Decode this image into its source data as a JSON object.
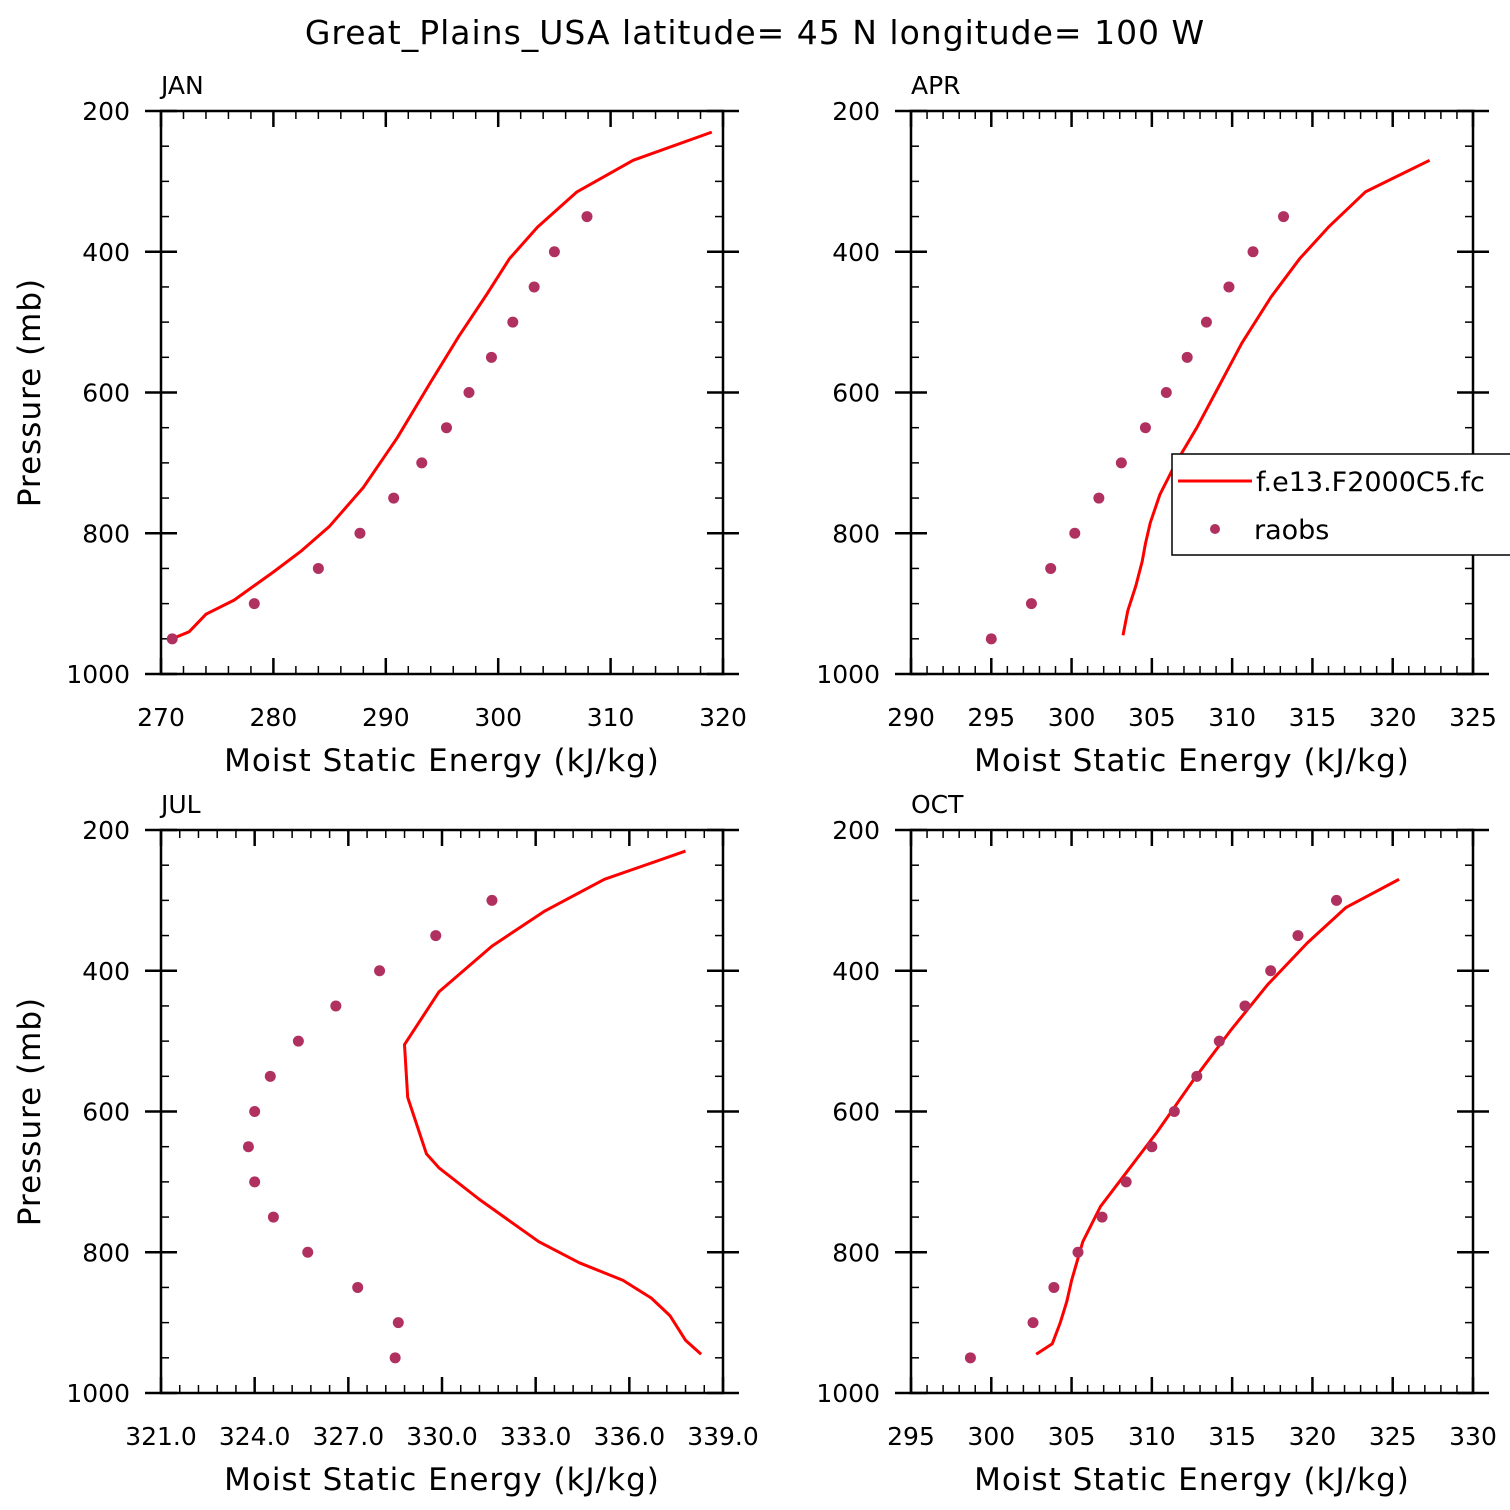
{
  "title": "Great_Plains_USA  latitude= 45 N longitude= 100 W",
  "colors": {
    "model": "#ff0000",
    "obs": "#b03060"
  },
  "legend": {
    "model_label": "f.e13.F2000C5.fc",
    "obs_label": "raobs",
    "placement": "right, inside APR panel"
  },
  "chart_data": [
    {
      "type": "line",
      "title": "JAN",
      "xlabel": "Moist Static Energy (kJ/kg)",
      "ylabel": "Pressure (mb)",
      "xlim": [
        270,
        320
      ],
      "ylim": [
        1000,
        200
      ],
      "xticks": [
        270,
        280,
        290,
        300,
        310,
        320
      ],
      "xtick_labels": [
        "270",
        "280",
        "290",
        "300",
        "310",
        "320"
      ],
      "yticks": [
        200,
        400,
        600,
        800,
        1000
      ],
      "ytick_labels": [
        "200",
        "400",
        "600",
        "800",
        "1000"
      ],
      "x_minor": 2,
      "y_minor": 50,
      "series": [
        {
          "kind": "line",
          "x": [
            271.0,
            272.5,
            274.0,
            276.5,
            280.0,
            282.5,
            285.0,
            288.0,
            291.0,
            294.0,
            296.5,
            299.0,
            301.0,
            303.5,
            307.0,
            312.0,
            319.0
          ],
          "y": [
            950,
            940,
            915,
            895,
            855,
            825,
            790,
            735,
            665,
            585,
            520,
            460,
            410,
            365,
            315,
            270,
            230
          ]
        },
        {
          "kind": "scatter",
          "x": [
            271.0,
            278.3,
            284.0,
            287.7,
            290.7,
            293.2,
            295.4,
            297.4,
            299.4,
            301.3,
            303.2,
            305.0,
            307.9
          ],
          "y": [
            950,
            900,
            850,
            800,
            750,
            700,
            650,
            600,
            550,
            500,
            450,
            400,
            350
          ]
        }
      ]
    },
    {
      "type": "line",
      "title": "APR",
      "xlabel": "Moist Static Energy (kJ/kg)",
      "ylabel": "",
      "xlim": [
        290,
        325
      ],
      "ylim": [
        1000,
        200
      ],
      "xticks": [
        290,
        295,
        300,
        305,
        310,
        315,
        320,
        325
      ],
      "xtick_labels": [
        "290",
        "295",
        "300",
        "305",
        "310",
        "315",
        "320",
        "325"
      ],
      "yticks": [
        200,
        400,
        600,
        800,
        1000
      ],
      "ytick_labels": [
        "200",
        "400",
        "600",
        "800",
        "1000"
      ],
      "x_minor": 1,
      "y_minor": 50,
      "series": [
        {
          "kind": "line",
          "x": [
            303.2,
            303.5,
            304.0,
            304.4,
            304.6,
            304.9,
            305.5,
            306.5,
            307.8,
            309.2,
            310.6,
            312.4,
            314.2,
            316.0,
            318.3,
            322.3
          ],
          "y": [
            945,
            910,
            875,
            840,
            815,
            785,
            745,
            700,
            650,
            590,
            530,
            465,
            410,
            365,
            315,
            270
          ]
        },
        {
          "kind": "scatter",
          "x": [
            295.0,
            297.5,
            298.7,
            300.2,
            301.7,
            303.1,
            304.6,
            305.9,
            307.2,
            308.4,
            309.8,
            311.3,
            313.2
          ],
          "y": [
            950,
            900,
            850,
            800,
            750,
            700,
            650,
            600,
            550,
            500,
            450,
            400,
            350
          ]
        }
      ]
    },
    {
      "type": "line",
      "title": "JUL",
      "xlabel": "Moist Static Energy (kJ/kg)",
      "ylabel": "Pressure (mb)",
      "xlim": [
        321.0,
        339.0
      ],
      "ylim": [
        1000,
        200
      ],
      "xticks": [
        321.0,
        324.0,
        327.0,
        330.0,
        333.0,
        336.0,
        339.0
      ],
      "xtick_labels": [
        "321.0",
        "324.0",
        "327.0",
        "330.0",
        "333.0",
        "336.0",
        "339.0"
      ],
      "yticks": [
        200,
        400,
        600,
        800,
        1000
      ],
      "ytick_labels": [
        "200",
        "400",
        "600",
        "800",
        "1000"
      ],
      "x_minor": 0.6,
      "y_minor": 50,
      "series": [
        {
          "kind": "line",
          "x": [
            338.3,
            337.8,
            337.3,
            336.7,
            335.8,
            334.4,
            333.1,
            331.2,
            329.9,
            329.5,
            328.9,
            328.8,
            329.9,
            331.6,
            333.3,
            335.2,
            337.8
          ],
          "y": [
            945,
            925,
            890,
            865,
            840,
            815,
            785,
            725,
            680,
            660,
            580,
            505,
            430,
            365,
            315,
            270,
            230
          ]
        },
        {
          "kind": "scatter",
          "x": [
            328.5,
            328.6,
            327.3,
            325.7,
            324.6,
            324.0,
            323.8,
            324.0,
            324.5,
            325.4,
            326.6,
            328.0,
            329.8,
            331.6
          ],
          "y": [
            950,
            900,
            850,
            800,
            750,
            700,
            650,
            600,
            550,
            500,
            450,
            400,
            350,
            300
          ]
        }
      ]
    },
    {
      "type": "line",
      "title": "OCT",
      "xlabel": "Moist Static Energy (kJ/kg)",
      "ylabel": "",
      "xlim": [
        295,
        330
      ],
      "ylim": [
        1000,
        200
      ],
      "xticks": [
        295,
        300,
        305,
        310,
        315,
        320,
        325,
        330
      ],
      "xtick_labels": [
        "295",
        "300",
        "305",
        "310",
        "315",
        "320",
        "325",
        "330"
      ],
      "yticks": [
        200,
        400,
        600,
        800,
        1000
      ],
      "ytick_labels": [
        "200",
        "400",
        "600",
        "800",
        "1000"
      ],
      "x_minor": 1,
      "y_minor": 50,
      "series": [
        {
          "kind": "line",
          "x": [
            302.8,
            303.8,
            304.3,
            304.7,
            305.0,
            305.7,
            306.8,
            308.3,
            310.3,
            312.6,
            314.9,
            317.2,
            319.7,
            322.1,
            325.4
          ],
          "y": [
            945,
            930,
            900,
            870,
            840,
            785,
            735,
            690,
            630,
            555,
            485,
            420,
            360,
            310,
            270
          ]
        },
        {
          "kind": "scatter",
          "x": [
            298.7,
            302.6,
            303.9,
            305.4,
            306.9,
            308.4,
            310.0,
            311.4,
            312.8,
            314.2,
            315.8,
            317.4,
            319.1,
            321.5
          ],
          "y": [
            950,
            900,
            850,
            800,
            750,
            700,
            650,
            600,
            550,
            500,
            450,
            400,
            350,
            300
          ]
        }
      ]
    }
  ]
}
